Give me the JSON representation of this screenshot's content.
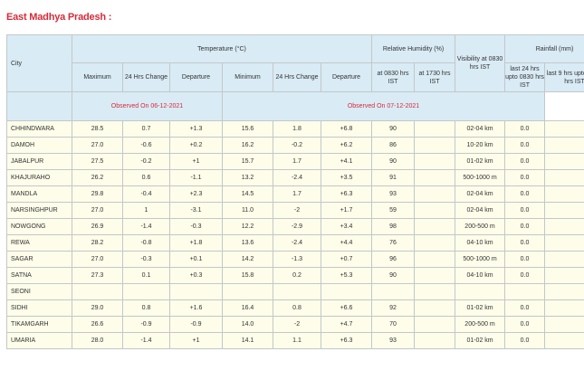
{
  "title": "East Madhya Pradesh :",
  "headers": {
    "city": "City",
    "temperature": "Temperature (°C)",
    "humidity": "Relative Humidity (%)",
    "visibility": "Visibility at 0830 hrs IST",
    "rainfall": "Rainfall (mm)",
    "maximum": "Maximum",
    "change1": "24 Hrs Change",
    "departure1": "Departure",
    "minimum": "Minimum",
    "change2": "24 Hrs Change",
    "departure2": "Departure",
    "rh0830": "at 0830 hrs IST",
    "rh1730": "at 1730 hrs IST",
    "rain24": "last 24 hrs upto 0830 hrs IST",
    "rain9": "last 9 hrs upto 1730 hrs IST",
    "observed1": "Observed On 06-12-2021",
    "observed2": "Observed On 07-12-2021"
  },
  "rows": [
    [
      "CHHINDWARA",
      "28.5",
      "0.7",
      "+1.3",
      "15.6",
      "1.8",
      "+6.8",
      "90",
      "",
      "02-04 km",
      "0.0",
      ""
    ],
    [
      "DAMOH",
      "27.0",
      "-0.6",
      "+0.2",
      "16.2",
      "-0.2",
      "+6.2",
      "86",
      "",
      "10-20 km",
      "0.0",
      ""
    ],
    [
      "JABALPUR",
      "27.5",
      "-0.2",
      "+1",
      "15.7",
      "1.7",
      "+4.1",
      "90",
      "",
      "01-02 km",
      "0.0",
      ""
    ],
    [
      "KHAJURAHO",
      "26.2",
      "0.6",
      "-1.1",
      "13.2",
      "-2.4",
      "+3.5",
      "91",
      "",
      "500-1000 m",
      "0.0",
      ""
    ],
    [
      "MANDLA",
      "29.8",
      "-0.4",
      "+2.3",
      "14.5",
      "1.7",
      "+6.3",
      "93",
      "",
      "02-04 km",
      "0.0",
      ""
    ],
    [
      "NARSINGHPUR",
      "27.0",
      "1",
      "-3.1",
      "11.0",
      "-2",
      "+1.7",
      "59",
      "",
      "02-04 km",
      "0.0",
      ""
    ],
    [
      "NOWGONG",
      "26.9",
      "-1.4",
      "-0.3",
      "12.2",
      "-2.9",
      "+3.4",
      "98",
      "",
      "200-500 m",
      "0.0",
      ""
    ],
    [
      "REWA",
      "28.2",
      "-0.8",
      "+1.8",
      "13.6",
      "-2.4",
      "+4.4",
      "76",
      "",
      "04-10 km",
      "0.0",
      ""
    ],
    [
      "SAGAR",
      "27.0",
      "-0.3",
      "+0.1",
      "14.2",
      "-1.3",
      "+0.7",
      "96",
      "",
      "500-1000 m",
      "0.0",
      ""
    ],
    [
      "SATNA",
      "27.3",
      "0.1",
      "+0.3",
      "15.8",
      "0.2",
      "+5.3",
      "90",
      "",
      "04-10 km",
      "0.0",
      ""
    ],
    [
      "SEONI",
      "",
      "",
      "",
      "",
      "",
      "",
      "",
      "",
      "",
      "",
      ""
    ],
    [
      "SIDHI",
      "29.0",
      "0.8",
      "+1.6",
      "16.4",
      "0.8",
      "+6.6",
      "92",
      "",
      "01-02 km",
      "0.0",
      ""
    ],
    [
      "TIKAMGARH",
      "26.6",
      "-0.9",
      "-0.9",
      "14.0",
      "-2",
      "+4.7",
      "70",
      "",
      "200-500 m",
      "0.0",
      ""
    ],
    [
      "UMARIA",
      "28.0",
      "-1.4",
      "+1",
      "14.1",
      "1.1",
      "+6.3",
      "93",
      "",
      "01-02 km",
      "0.0",
      ""
    ]
  ]
}
